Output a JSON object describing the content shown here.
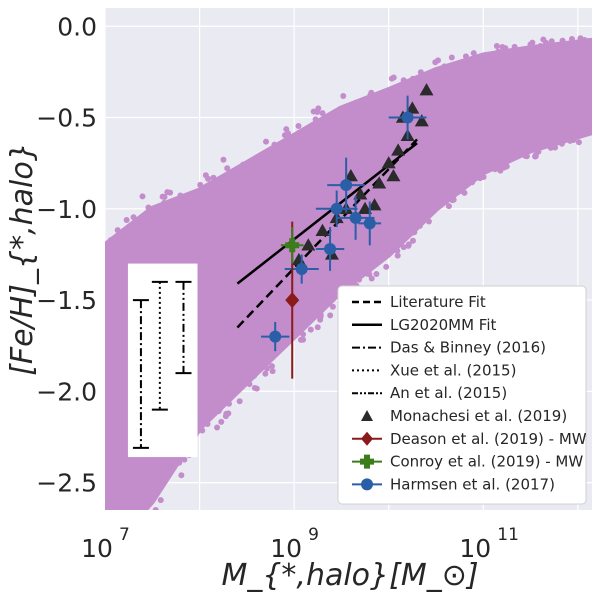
{
  "chart_data": {
    "type": "scatter",
    "xlabel": "M_{*,halo}[M_⊙]",
    "ylabel": "[Fe/H]_{*,halo}",
    "xscale": "log",
    "xlim": [
      7.0,
      12.15
    ],
    "ylim": [
      -2.65,
      0.1
    ],
    "xticks": [
      {
        "value": 7,
        "label": "10",
        "exp": "7"
      },
      {
        "value": 9,
        "label": "10",
        "exp": "9"
      },
      {
        "value": 11,
        "label": "10",
        "exp": "11"
      }
    ],
    "yticks": [
      {
        "value": 0.0,
        "label": "0.0"
      },
      {
        "value": -0.5,
        "label": "−0.5"
      },
      {
        "value": -1.0,
        "label": "−1.0"
      },
      {
        "value": -1.5,
        "label": "−1.5"
      },
      {
        "value": -2.0,
        "label": "−2.0"
      },
      {
        "value": -2.5,
        "label": "−2.5"
      }
    ],
    "grid": true,
    "colors": {
      "background": "#EAEAF2",
      "cloud": "#C38DCB",
      "triangles": "#2B2B2B",
      "deason": "#8B1A1A",
      "conroy": "#3A7D1A",
      "harmsen": "#2A5FA8",
      "legend_bg": "#FFFFFF"
    },
    "cloud_band": [
      {
        "x": 7.0,
        "center": -2.05,
        "half": 0.85
      },
      {
        "x": 7.5,
        "center": -1.8,
        "half": 0.8
      },
      {
        "x": 8.0,
        "center": -1.55,
        "half": 0.65
      },
      {
        "x": 8.5,
        "center": -1.35,
        "half": 0.6
      },
      {
        "x": 9.0,
        "center": -1.15,
        "half": 0.55
      },
      {
        "x": 9.5,
        "center": -0.95,
        "half": 0.5
      },
      {
        "x": 10.0,
        "center": -0.8,
        "half": 0.45
      },
      {
        "x": 10.5,
        "center": -0.62,
        "half": 0.38
      },
      {
        "x": 11.0,
        "center": -0.48,
        "half": 0.32
      },
      {
        "x": 11.5,
        "center": -0.4,
        "half": 0.28
      },
      {
        "x": 12.15,
        "center": -0.33,
        "half": 0.25
      }
    ],
    "literature_fit": {
      "x": [
        8.4,
        10.3
      ],
      "y": [
        -1.65,
        -0.62
      ]
    },
    "lg2020mm_fit": {
      "x": [
        8.4,
        10.3
      ],
      "y": [
        -1.41,
        -0.64
      ]
    },
    "das_binney_2016": {
      "x": 7.38,
      "low": -2.31,
      "high": -1.5
    },
    "xue_2015": {
      "x": 7.58,
      "low": -2.1,
      "high": -1.4
    },
    "an_2015": {
      "x": 7.83,
      "low": -1.9,
      "high": -1.4
    },
    "monachesi_2019": [
      {
        "x": 9.05,
        "y": -1.28
      },
      {
        "x": 9.15,
        "y": -1.2
      },
      {
        "x": 9.3,
        "y": -1.12
      },
      {
        "x": 9.4,
        "y": -1.25
      },
      {
        "x": 9.45,
        "y": -1.05
      },
      {
        "x": 9.55,
        "y": -1.0
      },
      {
        "x": 9.6,
        "y": -0.82
      },
      {
        "x": 9.7,
        "y": -0.92
      },
      {
        "x": 9.75,
        "y": -1.0
      },
      {
        "x": 9.85,
        "y": -0.98
      },
      {
        "x": 9.9,
        "y": -0.86
      },
      {
        "x": 10.0,
        "y": -0.75
      },
      {
        "x": 10.05,
        "y": -0.82
      },
      {
        "x": 10.1,
        "y": -0.68
      },
      {
        "x": 10.2,
        "y": -0.6
      },
      {
        "x": 10.15,
        "y": -0.5
      },
      {
        "x": 10.25,
        "y": -0.45
      },
      {
        "x": 10.35,
        "y": -0.52
      },
      {
        "x": 10.4,
        "y": -0.35
      }
    ],
    "deason_2019": {
      "x": 8.98,
      "y": -1.5,
      "yerr_low": 0.43,
      "yerr_high": 0.43
    },
    "conroy_2019": {
      "x": 8.98,
      "y": -1.2,
      "yerr_low": 0.1,
      "yerr_high": 0.1,
      "xerr_low": 0.12,
      "xerr_high": 0.12
    },
    "harmsen_2017": [
      {
        "x": 8.8,
        "y": -1.7,
        "xerr": 0.15,
        "yerr": 0.08
      },
      {
        "x": 9.08,
        "y": -1.33,
        "xerr": 0.18,
        "yerr": 0.08
      },
      {
        "x": 9.38,
        "y": -1.22,
        "xerr": 0.15,
        "yerr": 0.12
      },
      {
        "x": 9.45,
        "y": -1.0,
        "xerr": 0.22,
        "yerr": 0.1
      },
      {
        "x": 9.55,
        "y": -0.87,
        "xerr": 0.2,
        "yerr": 0.15
      },
      {
        "x": 9.65,
        "y": -1.05,
        "xerr": 0.2,
        "yerr": 0.12
      },
      {
        "x": 9.8,
        "y": -1.08,
        "xerr": 0.12,
        "yerr": 0.12
      },
      {
        "x": 10.2,
        "y": -0.5,
        "xerr": 0.2,
        "yerr": 0.12
      }
    ],
    "legend": [
      {
        "key": "literature_fit",
        "label": "Literature Fit"
      },
      {
        "key": "lg2020mm_fit",
        "label": "LG2020MM Fit"
      },
      {
        "key": "das_binney_2016",
        "label": "Das & Binney (2016)"
      },
      {
        "key": "xue_2015",
        "label": "Xue et al. (2015)"
      },
      {
        "key": "an_2015",
        "label": "An et al. (2015)"
      },
      {
        "key": "monachesi_2019",
        "label": "Monachesi et al. (2019)"
      },
      {
        "key": "deason_2019",
        "label": "Deason et al. (2019) - MW"
      },
      {
        "key": "conroy_2019",
        "label": "Conroy et al. (2019) - MW"
      },
      {
        "key": "harmsen_2017",
        "label": "Harmsen et al. (2017)"
      }
    ],
    "legend_position": "lower-right"
  }
}
